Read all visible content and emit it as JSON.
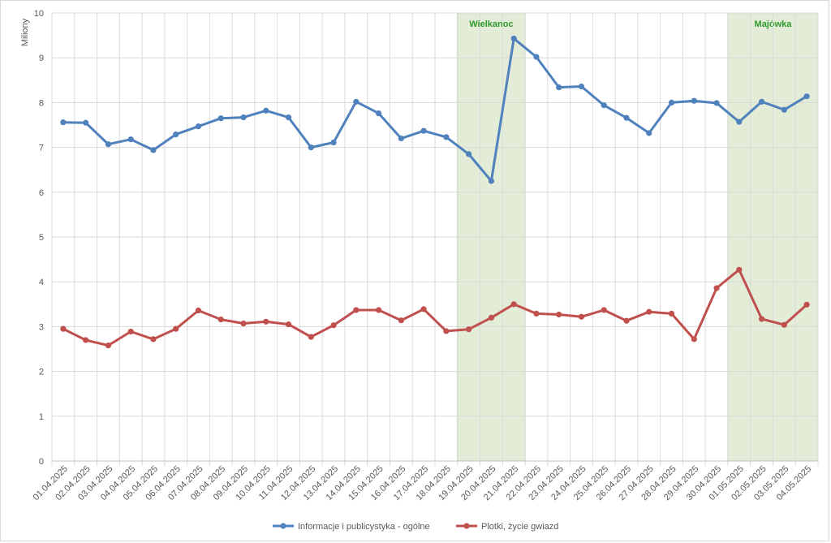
{
  "chart_data": {
    "type": "line",
    "ylabel": "Miliony",
    "ylim": [
      0,
      10
    ],
    "yticks": [
      0,
      1,
      2,
      3,
      4,
      5,
      6,
      7,
      8,
      9,
      10
    ],
    "grid": true,
    "legend_position": "bottom",
    "categories": [
      "01.04.2025",
      "02.04.2025",
      "03.04.2025",
      "04.04.2025",
      "05.04.2025",
      "06.04.2025",
      "07.04.2025",
      "08.04.2025",
      "09.04.2025",
      "10.04.2025",
      "11.04.2025",
      "12.04.2025",
      "13.04.2025",
      "14.04.2025",
      "15.04.2025",
      "16.04.2025",
      "17.04.2025",
      "18.04.2025",
      "19.04.2025",
      "20.04.2025",
      "21.04.2025",
      "22.04.2025",
      "23.04.2025",
      "24.04.2025",
      "25.04.2025",
      "26.04.2025",
      "27.04.2025",
      "28.04.2025",
      "29.04.2025",
      "30.04.2025",
      "01.05.2025",
      "02.05.2025",
      "03.05.2025",
      "04.05.2025"
    ],
    "highlights": [
      {
        "label": "Wielkanoc",
        "from": "19.04.2025",
        "to": "21.04.2025",
        "color": "#e2ecd6"
      },
      {
        "label": "Majówka",
        "from": "01.05.2025",
        "to": "04.05.2025",
        "color": "#e2ecd6"
      }
    ],
    "series": [
      {
        "name": "Informacje i publicystyka - ogólne",
        "color": "#4f81bd",
        "values": [
          7.56,
          7.55,
          7.07,
          7.18,
          6.94,
          7.29,
          7.47,
          7.65,
          7.67,
          7.82,
          7.67,
          7.0,
          7.11,
          8.02,
          7.76,
          7.2,
          7.37,
          7.23,
          6.85,
          6.25,
          9.43,
          9.02,
          8.34,
          8.36,
          7.94,
          7.66,
          7.32,
          8.0,
          8.04,
          7.99,
          7.57,
          8.02,
          7.84,
          8.14
        ]
      },
      {
        "name": "Plotki, życie gwiazd",
        "color": "#c0504d",
        "values": [
          2.95,
          2.7,
          2.58,
          2.89,
          2.72,
          2.95,
          3.36,
          3.16,
          3.07,
          3.11,
          3.05,
          2.77,
          3.03,
          3.37,
          3.37,
          3.14,
          3.39,
          2.9,
          2.94,
          3.2,
          3.5,
          3.29,
          3.27,
          3.22,
          3.37,
          3.13,
          3.33,
          3.29,
          2.72,
          3.86,
          4.27,
          3.17,
          3.04,
          3.49
        ]
      }
    ]
  }
}
